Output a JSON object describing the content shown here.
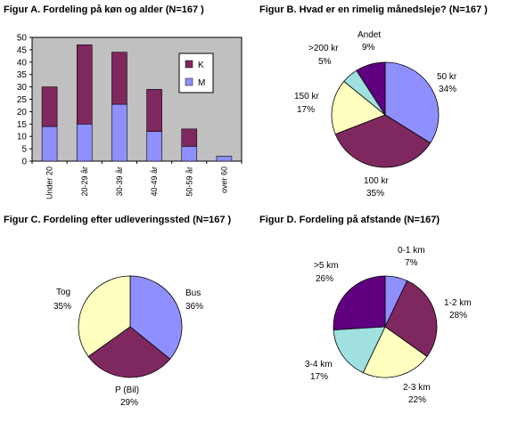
{
  "chart_data": [
    {
      "type": "bar",
      "title": "Figur A. Fordeling på køn og alder (N=167  )",
      "categories": [
        "Under 20",
        "20-29 år",
        "30-39 år",
        "40-49 år",
        "50-59 år",
        "over 60"
      ],
      "series": [
        {
          "name": "M",
          "values": [
            14,
            15,
            23,
            12,
            6,
            2
          ]
        },
        {
          "name": "K",
          "values": [
            16,
            32,
            21,
            17,
            7,
            0
          ]
        }
      ],
      "stacked": true,
      "ylim": [
        0,
        50
      ],
      "yticks": [
        "0",
        "5",
        "10",
        "15",
        "20",
        "25",
        "30",
        "35",
        "40",
        "45",
        "50"
      ],
      "legend_placement": "right",
      "legend": [
        {
          "name": "K",
          "color": "#7f2860"
        },
        {
          "name": "M",
          "color": "#8f8fff"
        }
      ],
      "colors": {
        "M": "#8f8fff",
        "K": "#7f2860",
        "plot_bg": "#c0c0c0"
      }
    },
    {
      "type": "pie",
      "title": "Figur B. Hvad er en rimelig månedsleje? (N=167  )",
      "slices": [
        {
          "name": "50 kr",
          "pct_label": "34%",
          "value": 34,
          "color": "#8f8fff"
        },
        {
          "name": "100 kr",
          "pct_label": "35%",
          "value": 35,
          "color": "#7f2860"
        },
        {
          "name": "150 kr",
          "pct_label": "17%",
          "value": 17,
          "color": "#ffffc0"
        },
        {
          "name": ">200 kr",
          "pct_label": "5%",
          "value": 5,
          "color": "#a0e0e0"
        },
        {
          "name": "Andet",
          "pct_label": "9%",
          "value": 9,
          "color": "#600080"
        }
      ]
    },
    {
      "type": "pie",
      "title": "Figur C. Fordeling efter udleveringssted (N=167 )",
      "slices": [
        {
          "name": "Bus",
          "pct_label": "36%",
          "value": 36,
          "color": "#8f8fff"
        },
        {
          "name": "P (Bil)",
          "pct_label": "29%",
          "value": 29,
          "color": "#7f2860"
        },
        {
          "name": "Tog",
          "pct_label": "35%",
          "value": 35,
          "color": "#ffffc0"
        }
      ]
    },
    {
      "type": "pie",
      "title": "Figur D. Fordeling på afstande (N=167)",
      "slices": [
        {
          "name": "0-1 km",
          "pct_label": "7%",
          "value": 7,
          "color": "#8f8fff"
        },
        {
          "name": "1-2 km",
          "pct_label": "28%",
          "value": 28,
          "color": "#7f2860"
        },
        {
          "name": "2-3 km",
          "pct_label": "22%",
          "value": 22,
          "color": "#ffffc0"
        },
        {
          "name": "3-4 km",
          "pct_label": "17%",
          "value": 17,
          "color": "#a0e0e0"
        },
        {
          "name": ">5 km",
          "pct_label": "26%",
          "value": 26,
          "color": "#600080"
        }
      ]
    }
  ]
}
